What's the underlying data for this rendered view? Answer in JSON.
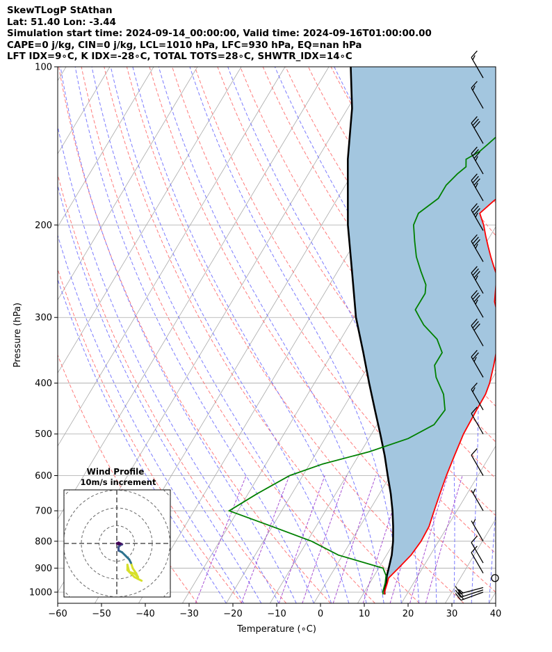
{
  "header": {
    "title": "SkewTLogP StAthan",
    "location": "Lat: 51.40   Lon: -3.44",
    "times": "Simulation start time: 2024-09-14_00:00:00, Valid time: 2024-09-16T01:00:00.00",
    "params": "CAPE=0 j/kg, CIN=0 j/kg, LCL=1010 hPa, LFC=930 hPa, EQ=nan hPa",
    "indices": "LFT IDX=9∘C, K IDX=-28∘C, TOTAL TOTS=28∘C, SHWTR_IDX=14∘C"
  },
  "chart_data": {
    "type": "line",
    "xlabel": "Temperature (∘C)",
    "ylabel": "Pressure (hPa)",
    "xlim": [
      -60,
      40
    ],
    "ylim": [
      1050,
      100
    ],
    "y_scale": "log",
    "grid": true,
    "x_ticks": [
      "−60",
      "−50",
      "−40",
      "−30",
      "−20",
      "−10",
      "0",
      "10",
      "20",
      "30",
      "40"
    ],
    "y_ticks": [
      "100",
      "200",
      "300",
      "400",
      "500",
      "600",
      "700",
      "800",
      "900",
      "1000"
    ],
    "colors": {
      "temperature": "#ff0000",
      "dewpoint": "#008000",
      "parcel": "#000000",
      "shading": "#a3c6df",
      "dry_adiabats": "#ff6464",
      "moist_adiabats": "#6464ff",
      "mixing_ratio": "#9933cc",
      "isotherms": "#a9a9a9"
    },
    "series": [
      {
        "key": "temperature",
        "points": [
          [
            15,
            1010
          ],
          [
            14.6,
            1000
          ],
          [
            14,
            960
          ],
          [
            13.6,
            940
          ],
          [
            14.5,
            900
          ],
          [
            15.6,
            850
          ],
          [
            16,
            800
          ],
          [
            15.8,
            750
          ],
          [
            14.8,
            700
          ],
          [
            13.8,
            650
          ],
          [
            12.8,
            600
          ],
          [
            11.9,
            550
          ],
          [
            11,
            500
          ],
          [
            10.7,
            450
          ],
          [
            10.6,
            420
          ],
          [
            10,
            400
          ],
          [
            8.5,
            370
          ],
          [
            7,
            345
          ],
          [
            5,
            320
          ],
          [
            3,
            300
          ],
          [
            0,
            280
          ],
          [
            -2,
            260
          ],
          [
            -3,
            250
          ],
          [
            -5,
            240
          ],
          [
            -7,
            230
          ],
          [
            -9,
            220
          ],
          [
            -11,
            210
          ],
          [
            -13,
            200
          ],
          [
            -15.5,
            190
          ],
          [
            -14,
            180
          ],
          [
            -12,
            170
          ],
          [
            -10,
            162
          ],
          [
            -7,
            155
          ],
          [
            -1,
            148
          ],
          [
            1,
            145
          ],
          [
            2,
            140
          ],
          [
            5,
            130
          ],
          [
            6,
            125
          ],
          [
            8,
            120
          ],
          [
            10,
            115
          ],
          [
            11,
            110
          ],
          [
            12,
            106
          ],
          [
            13,
            103
          ],
          [
            14,
            100
          ]
        ]
      },
      {
        "key": "dewpoint",
        "points": [
          [
            14.6,
            1010
          ],
          [
            14.2,
            1000
          ],
          [
            13.5,
            960
          ],
          [
            12.7,
            930
          ],
          [
            11,
            900
          ],
          [
            -1,
            850
          ],
          [
            -9,
            800
          ],
          [
            -20,
            750
          ],
          [
            -32,
            700
          ],
          [
            -28,
            650
          ],
          [
            -23,
            600
          ],
          [
            -17,
            570
          ],
          [
            -8,
            540
          ],
          [
            -1,
            510
          ],
          [
            3,
            480
          ],
          [
            3.5,
            450
          ],
          [
            1,
            420
          ],
          [
            -3,
            390
          ],
          [
            -5,
            370
          ],
          [
            -5,
            350
          ],
          [
            -8,
            330
          ],
          [
            -13,
            310
          ],
          [
            -15,
            300
          ],
          [
            -17,
            290
          ],
          [
            -17,
            270
          ],
          [
            -18,
            260
          ],
          [
            -21,
            245
          ],
          [
            -24,
            230
          ],
          [
            -26.5,
            215
          ],
          [
            -29,
            200
          ],
          [
            -29.5,
            190
          ],
          [
            -27,
            178
          ],
          [
            -27,
            168
          ],
          [
            -26,
            160
          ],
          [
            -25,
            155
          ],
          [
            -26,
            150
          ],
          [
            -24,
            145
          ],
          [
            -23,
            140
          ],
          [
            -21,
            130
          ],
          [
            -17,
            120
          ],
          [
            -16,
            115
          ],
          [
            -12,
            110
          ],
          [
            -10,
            106
          ],
          [
            -8,
            103
          ],
          [
            -7,
            100
          ]
        ]
      },
      {
        "key": "parcel",
        "points": [
          [
            15,
            1010
          ],
          [
            14.6,
            1000
          ],
          [
            13.7,
            960
          ],
          [
            12.9,
            930
          ],
          [
            12.3,
            900
          ],
          [
            11.2,
            850
          ],
          [
            9.6,
            800
          ],
          [
            7.6,
            750
          ],
          [
            5.3,
            700
          ],
          [
            2.6,
            650
          ],
          [
            -0.6,
            600
          ],
          [
            -4,
            550
          ],
          [
            -8,
            500
          ],
          [
            -12.5,
            450
          ],
          [
            -17.5,
            400
          ],
          [
            -23,
            350
          ],
          [
            -29.5,
            300
          ],
          [
            -36,
            250
          ],
          [
            -44,
            200
          ],
          [
            -53,
            150
          ],
          [
            -59,
            120
          ],
          [
            -65,
            100
          ]
        ]
      }
    ],
    "winds": [
      {
        "pressure": 1000,
        "speed_kt": 20,
        "dir_deg": 250
      },
      {
        "pressure": 990,
        "speed_kt": 20,
        "dir_deg": 252
      },
      {
        "pressure": 980,
        "speed_kt": 15,
        "dir_deg": 255
      },
      {
        "pressure": 940,
        "speed_kt": 0,
        "dir_deg": 0
      },
      {
        "pressure": 920,
        "speed_kt": 10,
        "dir_deg": 330
      },
      {
        "pressure": 880,
        "speed_kt": 10,
        "dir_deg": 330
      },
      {
        "pressure": 800,
        "speed_kt": 5,
        "dir_deg": 330
      },
      {
        "pressure": 700,
        "speed_kt": 5,
        "dir_deg": 330
      },
      {
        "pressure": 600,
        "speed_kt": 10,
        "dir_deg": 330
      },
      {
        "pressure": 500,
        "speed_kt": 10,
        "dir_deg": 330
      },
      {
        "pressure": 450,
        "speed_kt": 15,
        "dir_deg": 330
      },
      {
        "pressure": 390,
        "speed_kt": 25,
        "dir_deg": 330
      },
      {
        "pressure": 340,
        "speed_kt": 30,
        "dir_deg": 330
      },
      {
        "pressure": 300,
        "speed_kt": 35,
        "dir_deg": 330
      },
      {
        "pressure": 270,
        "speed_kt": 35,
        "dir_deg": 330
      },
      {
        "pressure": 235,
        "speed_kt": 35,
        "dir_deg": 330
      },
      {
        "pressure": 205,
        "speed_kt": 35,
        "dir_deg": 330
      },
      {
        "pressure": 180,
        "speed_kt": 35,
        "dir_deg": 330
      },
      {
        "pressure": 160,
        "speed_kt": 35,
        "dir_deg": 330
      },
      {
        "pressure": 140,
        "speed_kt": 30,
        "dir_deg": 330
      },
      {
        "pressure": 120,
        "speed_kt": 15,
        "dir_deg": 330
      },
      {
        "pressure": 105,
        "speed_kt": 15,
        "dir_deg": 330
      }
    ],
    "hodograph": {
      "title": "Wind Profile",
      "subtitle": "10m/s increment",
      "ring_step_ms": 10,
      "points_uv": [
        [
          14,
          -21
        ],
        [
          12,
          -20
        ],
        [
          10,
          -19
        ],
        [
          8,
          -17
        ],
        [
          6,
          -15
        ],
        [
          6,
          -12
        ],
        [
          7,
          -16
        ],
        [
          10,
          -17
        ],
        [
          12,
          -19
        ],
        [
          11,
          -17
        ],
        [
          9,
          -14
        ],
        [
          8,
          -11
        ],
        [
          7,
          -9
        ],
        [
          5,
          -7
        ],
        [
          3,
          -5
        ],
        [
          1,
          -4
        ],
        [
          1,
          -2
        ],
        [
          2,
          -1
        ],
        [
          3,
          -0.5
        ],
        [
          2,
          0
        ],
        [
          1,
          0.5
        ],
        [
          0,
          0
        ],
        [
          1,
          -0.5
        ],
        [
          2,
          -0.2
        ],
        [
          1,
          0.3
        ],
        [
          0,
          0
        ]
      ]
    }
  }
}
